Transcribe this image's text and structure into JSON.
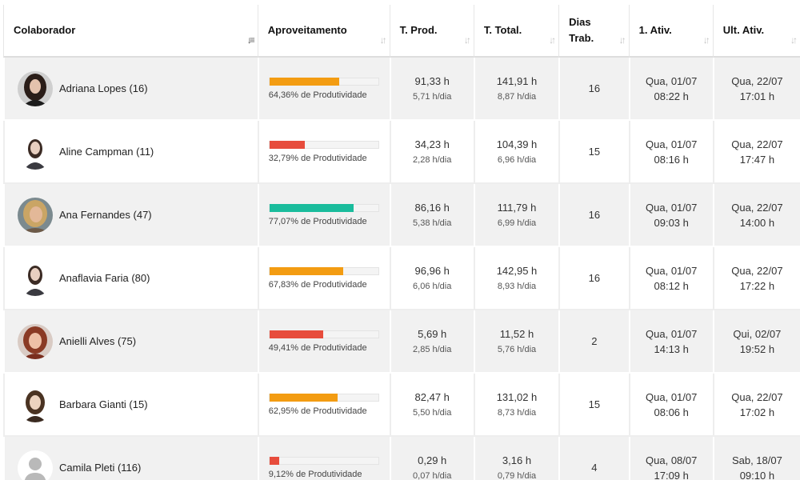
{
  "headers": {
    "colaborador": "Colaborador",
    "aproveitamento": "Aproveitamento",
    "t_prod": "T. Prod.",
    "t_total": "T. Total.",
    "dias_trab": "Dias\nTrab.",
    "primeira_ativ": "1. Ativ.",
    "ult_ativ": "Ult. Ativ."
  },
  "colors": {
    "orange": "#f39c12",
    "red": "#e74c3c",
    "teal": "#1abc9c"
  },
  "rows": [
    {
      "name": "Adriana Lopes (16)",
      "pct": 64.36,
      "pct_label": "64,36% de Produtividade",
      "color": "#f39c12",
      "tprod": "91,33 h",
      "tprod_day": "5,71 h/dia",
      "ttotal": "141,91 h",
      "ttotal_day": "8,87 h/dia",
      "dias": "16",
      "first_day": "Qua, 01/07",
      "first_time": "08:22 h",
      "last_day": "Qua, 22/07",
      "last_time": "17:01 h",
      "avatar": "photo-dark"
    },
    {
      "name": "Aline Campman (11)",
      "pct": 32.79,
      "pct_label": "32,79% de Produtividade",
      "color": "#e74c3c",
      "tprod": "34,23 h",
      "tprod_day": "2,28 h/dia",
      "ttotal": "104,39 h",
      "ttotal_day": "6,96 h/dia",
      "dias": "15",
      "first_day": "Qua, 01/07",
      "first_time": "08:16 h",
      "last_day": "Qua, 22/07",
      "last_time": "17:47 h",
      "avatar": "photo-light"
    },
    {
      "name": "Ana Fernandes (47)",
      "pct": 77.07,
      "pct_label": "77,07% de Produtividade",
      "color": "#1abc9c",
      "tprod": "86,16 h",
      "tprod_day": "5,38 h/dia",
      "ttotal": "111,79 h",
      "ttotal_day": "6,99 h/dia",
      "dias": "16",
      "first_day": "Qua, 01/07",
      "first_time": "09:03 h",
      "last_day": "Qua, 22/07",
      "last_time": "14:00 h",
      "avatar": "photo-blonde"
    },
    {
      "name": "Anaflavia Faria (80)",
      "pct": 67.83,
      "pct_label": "67,83% de Produtividade",
      "color": "#f39c12",
      "tprod": "96,96 h",
      "tprod_day": "6,06 h/dia",
      "ttotal": "142,95 h",
      "ttotal_day": "8,93 h/dia",
      "dias": "16",
      "first_day": "Qua, 01/07",
      "first_time": "08:12 h",
      "last_day": "Qua, 22/07",
      "last_time": "17:22 h",
      "avatar": "photo-light"
    },
    {
      "name": "Anielli Alves (75)",
      "pct": 49.41,
      "pct_label": "49,41% de Produtividade",
      "color": "#e74c3c",
      "tprod": "5,69 h",
      "tprod_day": "2,85 h/dia",
      "ttotal": "11,52 h",
      "ttotal_day": "5,76 h/dia",
      "dias": "2",
      "first_day": "Qua, 01/07",
      "first_time": "14:13 h",
      "last_day": "Qui, 02/07",
      "last_time": "19:52 h",
      "avatar": "photo-red"
    },
    {
      "name": "Barbara Gianti (15)",
      "pct": 62.95,
      "pct_label": "62,95% de Produtividade",
      "color": "#f39c12",
      "tprod": "82,47 h",
      "tprod_day": "5,50 h/dia",
      "ttotal": "131,02 h",
      "ttotal_day": "8,73 h/dia",
      "dias": "15",
      "first_day": "Qua, 01/07",
      "first_time": "08:06 h",
      "last_day": "Qua, 22/07",
      "last_time": "17:02 h",
      "avatar": "photo-brown"
    },
    {
      "name": "Camila Pleti (116)",
      "pct": 9.12,
      "pct_label": "9,12% de Produtividade",
      "color": "#e74c3c",
      "tprod": "0,29 h",
      "tprod_day": "0,07 h/dia",
      "ttotal": "3,16 h",
      "ttotal_day": "0,79 h/dia",
      "dias": "4",
      "first_day": "Qua, 08/07",
      "first_time": "17:09 h",
      "last_day": "Sab, 18/07",
      "last_time": "09:10 h",
      "avatar": "default-avatar"
    }
  ]
}
